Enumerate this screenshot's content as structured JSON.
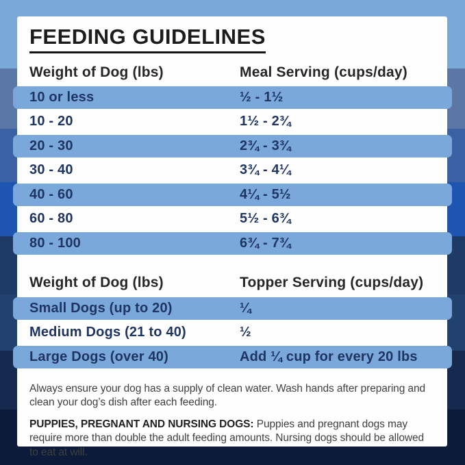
{
  "title": "FEEDING GUIDELINES",
  "colors": {
    "highlight_bar": "#7aa8da",
    "row_text": "#1e3463",
    "card_bg": "#fefefe",
    "bands": [
      "#79a8d9",
      "#5b77a6",
      "#3a61a4",
      "#1e55b0",
      "#1e3a66",
      "#21416f",
      "#16294e",
      "#0d1b3a"
    ]
  },
  "meal_table": {
    "col1_header": "Weight of Dog (lbs)",
    "col2_header": "Meal Serving (cups/day)",
    "rows": [
      {
        "weight": "10 or less",
        "serving": "½ - 1½",
        "highlight": true
      },
      {
        "weight": "10 - 20",
        "serving": "1½ - 2¾",
        "highlight": false
      },
      {
        "weight": "20 - 30",
        "serving": "2¾ - 3¾",
        "highlight": true
      },
      {
        "weight": "30 - 40",
        "serving": "3¾ - 4¼",
        "highlight": false
      },
      {
        "weight": "40 - 60",
        "serving": "4¼ - 5½",
        "highlight": true
      },
      {
        "weight": "60 - 80",
        "serving": "5½ - 6¾",
        "highlight": false
      },
      {
        "weight": "80 - 100",
        "serving": "6¾ - 7¾",
        "highlight": true
      }
    ]
  },
  "topper_table": {
    "col1_header": "Weight of Dog (lbs)",
    "col2_header": "Topper Serving (cups/day)",
    "rows": [
      {
        "weight": "Small Dogs (up to 20)",
        "serving": "¼",
        "highlight": true
      },
      {
        "weight": "Medium Dogs (21 to 40)",
        "serving": "½",
        "highlight": false
      },
      {
        "weight": "Large Dogs (over 40)",
        "serving": "Add ¼ cup for every 20 lbs",
        "highlight": true
      }
    ]
  },
  "notes": {
    "water": "Always ensure your dog has a supply of clean water. Wash hands after preparing and clean your dog’s dish after each feeding.",
    "puppies_label": "PUPPIES, PREGNANT AND NURSING DOGS:",
    "puppies_text": "Puppies and pregnant dogs may require more than double the adult feeding amounts. Nursing dogs should be allowed to eat at will."
  }
}
